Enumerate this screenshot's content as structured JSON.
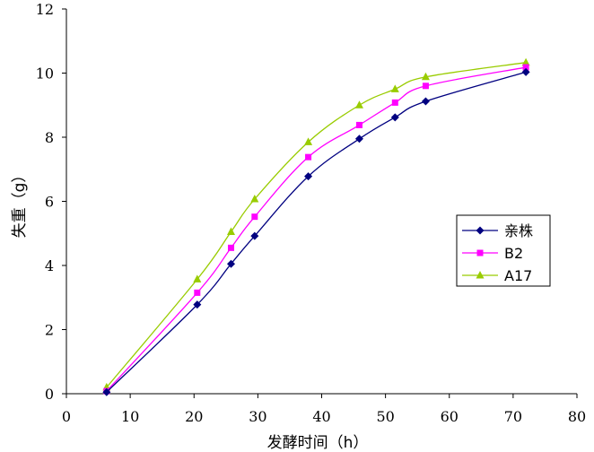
{
  "chart_data": {
    "type": "line",
    "title": "",
    "xlabel": "发酵时间（h）",
    "ylabel": "失重（g）",
    "xlim": [
      0,
      80
    ],
    "ylim": [
      0,
      12
    ],
    "xticks": [
      0,
      10,
      20,
      30,
      40,
      50,
      60,
      70,
      80
    ],
    "yticks": [
      0,
      2,
      4,
      6,
      8,
      10,
      12
    ],
    "grid": false,
    "legend_position": "right",
    "series": [
      {
        "name": "亲株",
        "color": "#000080",
        "marker": "diamond",
        "x": [
          6.3,
          20.5,
          25.8,
          29.5,
          37.9,
          45.9,
          51.5,
          56.3,
          72
        ],
        "y": [
          0.05,
          2.78,
          4.05,
          4.92,
          6.78,
          7.95,
          8.62,
          9.12,
          10.03
        ]
      },
      {
        "name": "B2",
        "color": "#FF00FF",
        "marker": "square",
        "x": [
          6.3,
          20.5,
          25.8,
          29.5,
          37.9,
          45.9,
          51.5,
          56.3,
          72
        ],
        "y": [
          0.08,
          3.15,
          4.55,
          5.52,
          7.38,
          8.38,
          9.08,
          9.6,
          10.18
        ]
      },
      {
        "name": "A17",
        "color": "#99CC00",
        "marker": "triangle",
        "x": [
          6.3,
          20.5,
          25.8,
          29.5,
          37.9,
          45.9,
          51.5,
          56.3,
          72
        ],
        "y": [
          0.2,
          3.57,
          5.05,
          6.07,
          7.85,
          9.0,
          9.5,
          9.88,
          10.33
        ]
      }
    ]
  }
}
